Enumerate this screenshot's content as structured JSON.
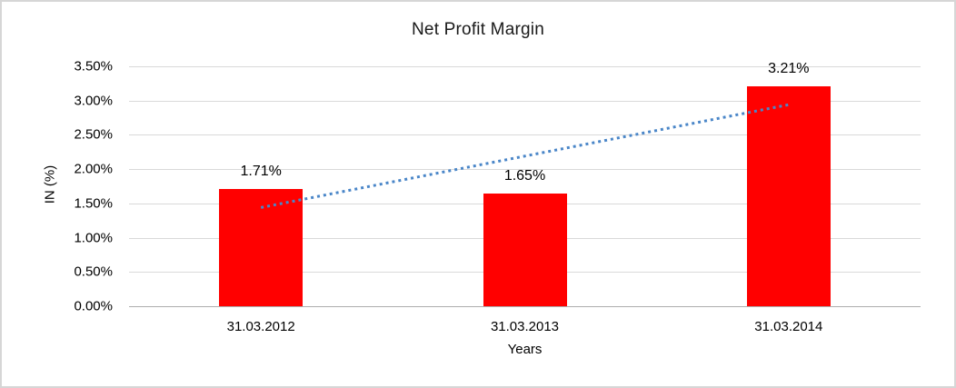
{
  "chart_data": {
    "type": "bar",
    "title": "Net Profit Margin",
    "categories": [
      "31.03.2012",
      "31.03.2013",
      "31.03.2014"
    ],
    "values": [
      1.71,
      1.65,
      3.21
    ],
    "data_labels": [
      "1.71%",
      "1.65%",
      "3.21%"
    ],
    "xlabel": "Years",
    "ylabel": "IN (%)",
    "ylim": [
      0,
      3.5
    ],
    "ytick_step": 0.5,
    "ytick_labels": [
      "0.00%",
      "0.50%",
      "1.00%",
      "1.50%",
      "2.00%",
      "2.50%",
      "3.00%",
      "3.50%"
    ],
    "grid": true,
    "legend": "none",
    "bar_color": "#ff0000",
    "grid_color": "#d9d9d9",
    "axis_line_color": "#adadad",
    "trendline": {
      "type": "linear",
      "style": "dotted",
      "color": "#4a86c8",
      "start_value": 1.44,
      "end_value": 2.94
    }
  }
}
